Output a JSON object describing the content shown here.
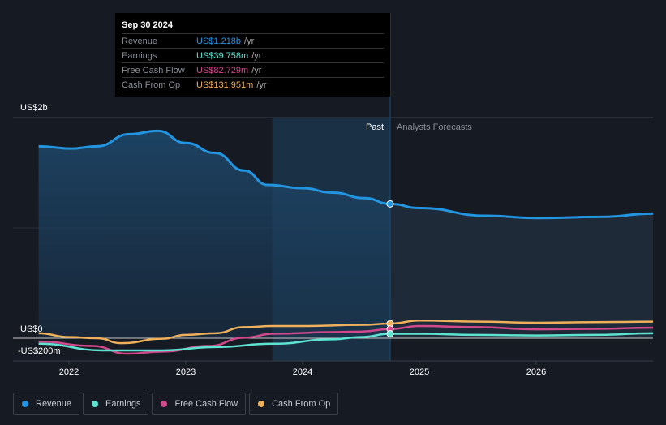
{
  "tooltip": {
    "date": "Sep 30 2024",
    "rows": [
      {
        "label": "Revenue",
        "value": "US$1.218b",
        "unit": "/yr",
        "color": "#2394df"
      },
      {
        "label": "Earnings",
        "value": "US$39.758m",
        "unit": "/yr",
        "color": "#5ee3d2"
      },
      {
        "label": "Free Cash Flow",
        "value": "US$82.729m",
        "unit": "/yr",
        "color": "#d1488c"
      },
      {
        "label": "Cash From Op",
        "value": "US$131.951m",
        "unit": "/yr",
        "color": "#eeb05a"
      }
    ]
  },
  "chart_data": {
    "type": "line",
    "y_labels": {
      "top": "US$2b",
      "zero": "US$0",
      "neg": "-US$200m"
    },
    "ylim": [
      -200,
      2000
    ],
    "xlim": [
      2021.6,
      2027
    ],
    "x_ticks": [
      "2022",
      "2023",
      "2024",
      "2025",
      "2026"
    ],
    "past_label": "Past",
    "forecast_label": "Analysts Forecasts",
    "divider": 2024.75,
    "highlight_start": 2023.74,
    "series": [
      {
        "name": "Revenue",
        "color": "#2394df",
        "points": [
          [
            2021.74,
            1740
          ],
          [
            2022.02,
            1720
          ],
          [
            2022.24,
            1740
          ],
          [
            2022.52,
            1850
          ],
          [
            2022.76,
            1880
          ],
          [
            2023.0,
            1770
          ],
          [
            2023.25,
            1680
          ],
          [
            2023.5,
            1520
          ],
          [
            2023.7,
            1390
          ],
          [
            2024.0,
            1360
          ],
          [
            2024.26,
            1320
          ],
          [
            2024.53,
            1270
          ],
          [
            2024.75,
            1218
          ],
          [
            2025.0,
            1180
          ],
          [
            2025.58,
            1110
          ],
          [
            2026.0,
            1090
          ],
          [
            2026.55,
            1100
          ],
          [
            2027.0,
            1130
          ]
        ]
      },
      {
        "name": "Earnings",
        "color": "#5ee3d2",
        "points": [
          [
            2021.74,
            -50
          ],
          [
            2022.3,
            -110
          ],
          [
            2022.8,
            -110
          ],
          [
            2023.25,
            -80
          ],
          [
            2023.75,
            -50
          ],
          [
            2024.25,
            -10
          ],
          [
            2024.5,
            10
          ],
          [
            2024.75,
            40
          ],
          [
            2025.0,
            40
          ],
          [
            2025.5,
            30
          ],
          [
            2026.0,
            25
          ],
          [
            2026.5,
            30
          ],
          [
            2027.0,
            45
          ]
        ]
      },
      {
        "name": "Free Cash Flow",
        "color": "#d1488c",
        "points": [
          [
            2021.74,
            -30
          ],
          [
            2022.2,
            -70
          ],
          [
            2022.5,
            -140
          ],
          [
            2022.8,
            -120
          ],
          [
            2023.2,
            -70
          ],
          [
            2023.5,
            5
          ],
          [
            2023.75,
            40
          ],
          [
            2024.25,
            55
          ],
          [
            2024.5,
            60
          ],
          [
            2024.75,
            83
          ],
          [
            2025.0,
            110
          ],
          [
            2025.5,
            100
          ],
          [
            2026.0,
            80
          ],
          [
            2026.5,
            85
          ],
          [
            2027.0,
            95
          ]
        ]
      },
      {
        "name": "Cash From Op",
        "color": "#eeb05a",
        "points": [
          [
            2021.74,
            45
          ],
          [
            2022.0,
            10
          ],
          [
            2022.24,
            0
          ],
          [
            2022.45,
            -45
          ],
          [
            2022.8,
            -5
          ],
          [
            2023.0,
            30
          ],
          [
            2023.25,
            45
          ],
          [
            2023.5,
            100
          ],
          [
            2023.75,
            110
          ],
          [
            2024.0,
            110
          ],
          [
            2024.5,
            120
          ],
          [
            2024.75,
            132
          ],
          [
            2025.0,
            160
          ],
          [
            2025.5,
            150
          ],
          [
            2026.0,
            140
          ],
          [
            2026.5,
            145
          ],
          [
            2027.0,
            150
          ]
        ]
      }
    ]
  }
}
